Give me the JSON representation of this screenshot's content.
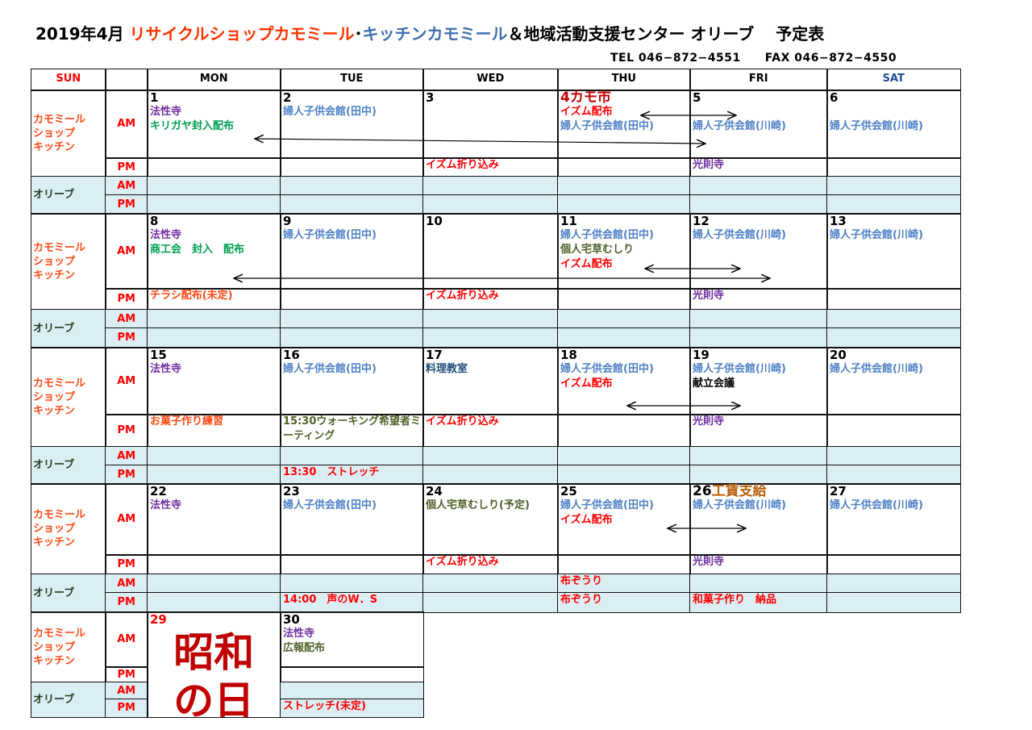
{
  "title": {
    "date": "2019年4月 ",
    "shop": "リサイクルショップカモミール",
    "sep": "･",
    "kitchen": "キッチンカモミール",
    "rest": "＆地域活動支援センター オリーブ　 予定表"
  },
  "contact": {
    "tel": "TEL 046−872−4551",
    "fax": "FAX 046−872−4550"
  },
  "colors": {
    "red": "#ff0000",
    "darkred": "#c00000",
    "orange": "#ff4a14",
    "blue": "#4f81c7",
    "navy": "#1f4e79",
    "purple": "#7030a0",
    "green": "#00a050",
    "olive": "#4f6228",
    "brown": "#b8600c",
    "black": "#000000",
    "darkgreen": "#1e3a1e",
    "sat": "#1f4e9a",
    "olive_bg": "#dbeef3"
  },
  "headers": [
    {
      "label": "SUN",
      "c": "red"
    },
    {
      "label": "",
      "c": "black"
    },
    {
      "label": "MON",
      "c": "black"
    },
    {
      "label": "TUE",
      "c": "black"
    },
    {
      "label": "WED",
      "c": "black"
    },
    {
      "label": "THU",
      "c": "black"
    },
    {
      "label": "FRI",
      "c": "black"
    },
    {
      "label": "SAT",
      "c": "sat"
    }
  ],
  "row_labels": {
    "chamomile": "カモミール\nショップ\nキッチン",
    "olive": "オリーブ",
    "am": "AM",
    "pm": "PM"
  },
  "weeks": [
    {
      "days": [
        {
          "n": "1"
        },
        {
          "n": "2"
        },
        {
          "n": "3"
        },
        {
          "n": "4",
          "c": "darkred",
          "note": "カモ市",
          "nc": "darkred"
        },
        {
          "n": "5"
        },
        {
          "n": "6"
        }
      ],
      "cam_am": [
        [
          {
            "t": "法性寺",
            "c": "purple"
          },
          {
            "t": "キリガヤ封入配布",
            "c": "green"
          }
        ],
        [
          {
            "t": "婦人子供会館(田中)",
            "c": "blue"
          }
        ],
        [],
        [
          {
            "t": "イズム配布",
            "c": "red"
          },
          {
            "t": "婦人子供会館(田中)",
            "c": "blue"
          }
        ],
        [
          {
            "t": "",
            "c": "black"
          },
          {
            "t": " 婦人子供会館(川崎)",
            "c": "blue"
          }
        ],
        [
          {
            "t": "",
            "c": "black"
          },
          {
            "t": "婦人子供会館(川崎)",
            "c": "blue"
          }
        ]
      ],
      "cam_pm": [
        [],
        [],
        [
          {
            "t": "イズム折り込み",
            "c": "red"
          }
        ],
        [],
        [
          {
            "t": "光則寺",
            "c": "purple"
          }
        ],
        []
      ],
      "olive_am": [
        [],
        [],
        [],
        [],
        [],
        []
      ],
      "olive_pm": [
        [],
        [],
        [],
        [],
        [],
        []
      ]
    },
    {
      "days": [
        {
          "n": "8"
        },
        {
          "n": "9"
        },
        {
          "n": "10"
        },
        {
          "n": "11"
        },
        {
          "n": "12"
        },
        {
          "n": "13"
        }
      ],
      "cam_am": [
        [
          {
            "t": "法性寺",
            "c": "purple"
          },
          {
            "t": "商工会　封入　配布",
            "c": "green"
          }
        ],
        [
          {
            "t": "婦人子供会館(田中)",
            "c": "blue"
          }
        ],
        [],
        [
          {
            "t": "婦人子供会館(田中)",
            "c": "blue"
          },
          {
            "t": "個人宅草むしり",
            "c": "olive"
          },
          {
            "t": "イズム配布",
            "c": "red"
          }
        ],
        [
          {
            "t": "婦人子供会館(川崎)",
            "c": "blue"
          }
        ],
        [
          {
            "t": "婦人子供会館(川崎)",
            "c": "blue"
          }
        ]
      ],
      "cam_pm": [
        [
          {
            "t": "チラシ配布(未定)",
            "c": "orange"
          }
        ],
        [],
        [
          {
            "t": "イズム折り込み",
            "c": "red"
          }
        ],
        [],
        [
          {
            "t": "光則寺",
            "c": "purple"
          }
        ],
        []
      ],
      "olive_am": [
        [],
        [],
        [],
        [],
        [],
        []
      ],
      "olive_pm": [
        [],
        [],
        [],
        [],
        [],
        []
      ]
    },
    {
      "days": [
        {
          "n": "15"
        },
        {
          "n": "16"
        },
        {
          "n": "17"
        },
        {
          "n": "18"
        },
        {
          "n": "19"
        },
        {
          "n": "20"
        }
      ],
      "cam_am": [
        [
          {
            "t": "法性寺",
            "c": "purple"
          }
        ],
        [
          {
            "t": "婦人子供会館(田中)",
            "c": "blue"
          }
        ],
        [
          {
            "t": "料理教室",
            "c": "navy"
          }
        ],
        [
          {
            "t": "婦人子供会館(田中)",
            "c": "blue"
          },
          {
            "t": "イズム配布",
            "c": "red"
          }
        ],
        [
          {
            "t": "婦人子供会館(川崎)",
            "c": "blue"
          },
          {
            "t": "献立会議",
            "c": "black"
          }
        ],
        [
          {
            "t": "婦人子供会館(川崎)",
            "c": "blue"
          }
        ]
      ],
      "cam_pm": [
        [
          {
            "t": "お菓子作り練習",
            "c": "orange"
          }
        ],
        [
          {
            "t": "15:30ウォーキング希望者ミーティング",
            "c": "olive"
          }
        ],
        [
          {
            "t": "イズム折り込み",
            "c": "red"
          }
        ],
        [],
        [
          {
            "t": "光則寺",
            "c": "purple"
          }
        ],
        []
      ],
      "olive_am": [
        [],
        [],
        [],
        [],
        [],
        []
      ],
      "olive_pm": [
        [],
        [
          {
            "t": "13:30　ストレッチ",
            "c": "red"
          }
        ],
        [],
        [],
        [],
        []
      ]
    },
    {
      "days": [
        {
          "n": "22"
        },
        {
          "n": "23"
        },
        {
          "n": "24"
        },
        {
          "n": "25"
        },
        {
          "n": "26",
          "note": "工賃支給",
          "nc": "brown"
        },
        {
          "n": "27"
        }
      ],
      "cam_am": [
        [
          {
            "t": "法性寺",
            "c": "purple"
          }
        ],
        [
          {
            "t": "婦人子供会館(田中)",
            "c": "blue"
          }
        ],
        [
          {
            "t": "個人宅草むしり(予定)",
            "c": "olive"
          }
        ],
        [
          {
            "t": "婦人子供会館(田中)",
            "c": "blue"
          },
          {
            "t": "イズム配布",
            "c": "red"
          }
        ],
        [
          {
            "t": "婦人子供会館(川崎)",
            "c": "blue"
          }
        ],
        [
          {
            "t": "婦人子供会館(川崎)",
            "c": "blue"
          }
        ]
      ],
      "cam_pm": [
        [],
        [],
        [
          {
            "t": "イズム折り込み",
            "c": "red"
          }
        ],
        [],
        [
          {
            "t": "光則寺",
            "c": "purple"
          }
        ],
        []
      ],
      "olive_am": [
        [],
        [],
        [],
        [
          {
            "t": "布ぞうり",
            "c": "red"
          }
        ],
        [],
        []
      ],
      "olive_pm": [
        [],
        [
          {
            "t": "14:00　声のW．S",
            "c": "red"
          }
        ],
        [],
        [
          {
            "t": "布ぞうり",
            "c": "red"
          }
        ],
        [
          {
            "t": "和菓子作り　納品",
            "c": "red"
          }
        ],
        []
      ]
    },
    {
      "days": [
        {
          "n": "29",
          "c": "red",
          "holiday": [
            "昭和",
            "の日"
          ]
        },
        {
          "n": "30"
        }
      ],
      "cam_am": [
        [],
        [
          {
            "t": "法性寺",
            "c": "purple"
          },
          {
            "t": "広報配布",
            "c": "olive"
          }
        ]
      ],
      "cam_pm": [
        [],
        []
      ],
      "olive_am": [
        [],
        []
      ],
      "olive_pm": [
        [],
        [
          {
            "t": "ストレッチ(未定)",
            "c": "red"
          }
        ]
      ]
    }
  ]
}
